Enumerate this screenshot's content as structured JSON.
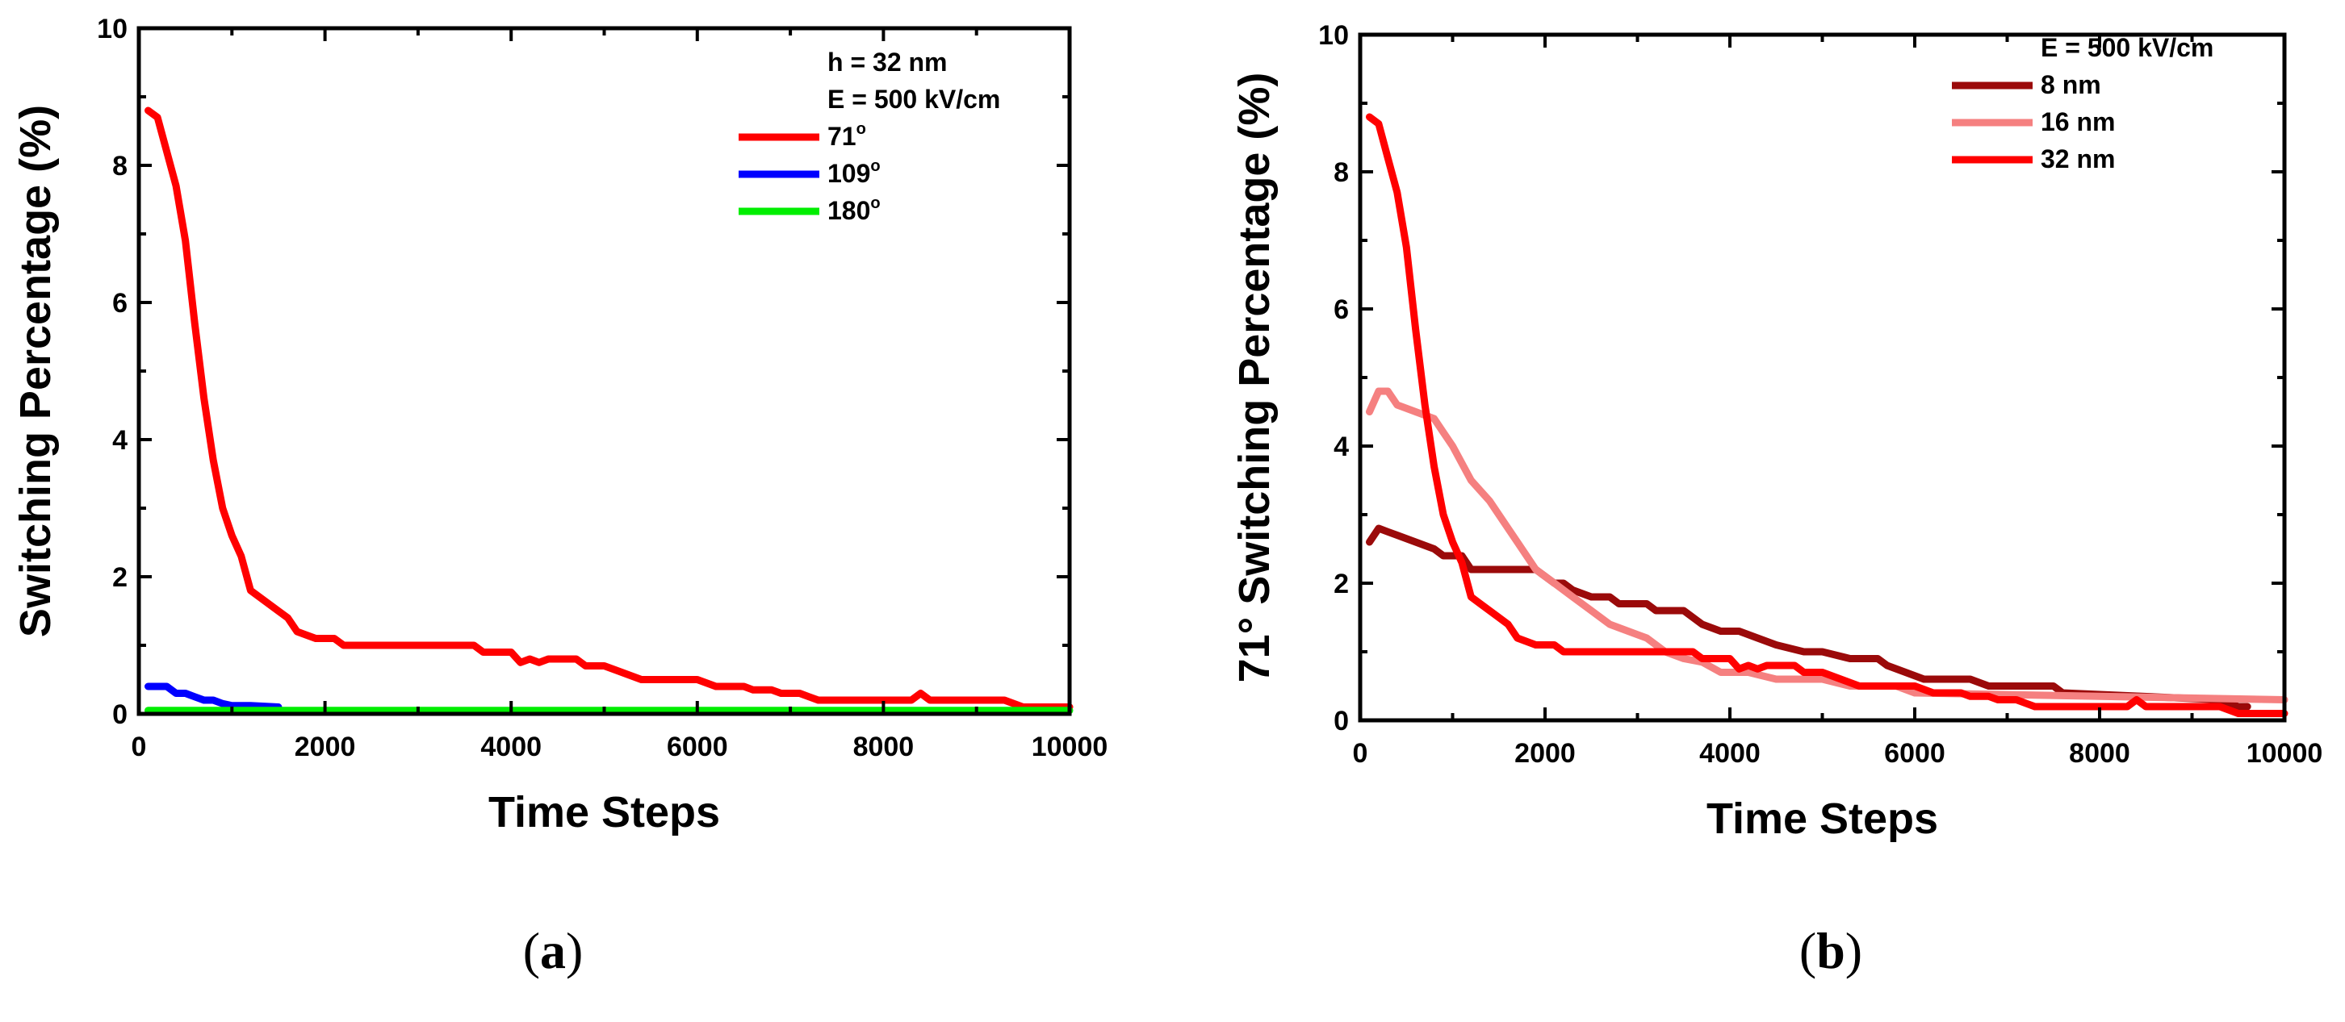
{
  "chart_data": [
    {
      "type": "line",
      "panel_label": "(a)",
      "panel_letter": "a",
      "title": "",
      "xlabel": "Time Steps",
      "ylabel": "Switching Percentage (%)",
      "xlim": [
        0,
        10000
      ],
      "ylim": [
        0,
        10
      ],
      "xticks": [
        0,
        2000,
        4000,
        6000,
        8000,
        10000
      ],
      "yticks": [
        0,
        2,
        4,
        6,
        8,
        10
      ],
      "legend_position": "top-right",
      "legend_header": [
        "h = 32 nm",
        "E = 500 kV/cm"
      ],
      "series": [
        {
          "name": "71°",
          "label_main": "71",
          "label_sup": "o",
          "color": "#ff0000",
          "points": [
            [
              100,
              8.8
            ],
            [
              200,
              8.7
            ],
            [
              300,
              8.2
            ],
            [
              400,
              7.7
            ],
            [
              500,
              6.9
            ],
            [
              600,
              5.7
            ],
            [
              700,
              4.6
            ],
            [
              800,
              3.7
            ],
            [
              900,
              3.0
            ],
            [
              1000,
              2.6
            ],
            [
              1100,
              2.3
            ],
            [
              1200,
              1.8
            ],
            [
              1300,
              1.7
            ],
            [
              1400,
              1.6
            ],
            [
              1500,
              1.5
            ],
            [
              1600,
              1.4
            ],
            [
              1700,
              1.2
            ],
            [
              1900,
              1.1
            ],
            [
              2100,
              1.1
            ],
            [
              2200,
              1.0
            ],
            [
              3600,
              1.0
            ],
            [
              3700,
              0.9
            ],
            [
              4000,
              0.9
            ],
            [
              4100,
              0.75
            ],
            [
              4200,
              0.8
            ],
            [
              4300,
              0.75
            ],
            [
              4400,
              0.8
            ],
            [
              4700,
              0.8
            ],
            [
              4800,
              0.7
            ],
            [
              5000,
              0.7
            ],
            [
              5200,
              0.6
            ],
            [
              5400,
              0.5
            ],
            [
              6000,
              0.5
            ],
            [
              6200,
              0.4
            ],
            [
              6500,
              0.4
            ],
            [
              6600,
              0.35
            ],
            [
              6800,
              0.35
            ],
            [
              6900,
              0.3
            ],
            [
              7100,
              0.3
            ],
            [
              7200,
              0.25
            ],
            [
              7300,
              0.2
            ],
            [
              8300,
              0.2
            ],
            [
              8400,
              0.3
            ],
            [
              8500,
              0.2
            ],
            [
              9300,
              0.2
            ],
            [
              9500,
              0.1
            ],
            [
              10000,
              0.1
            ]
          ]
        },
        {
          "name": "109°",
          "label_main": "109",
          "label_sup": "o",
          "color": "#0000ff",
          "points": [
            [
              100,
              0.4
            ],
            [
              300,
              0.4
            ],
            [
              400,
              0.3
            ],
            [
              500,
              0.3
            ],
            [
              600,
              0.25
            ],
            [
              700,
              0.2
            ],
            [
              800,
              0.2
            ],
            [
              900,
              0.15
            ],
            [
              1000,
              0.12
            ],
            [
              1200,
              0.12
            ],
            [
              1500,
              0.1
            ]
          ]
        },
        {
          "name": "180°",
          "label_main": "180",
          "label_sup": "o",
          "color": "#00ee00",
          "points": [
            [
              100,
              0.05
            ],
            [
              10000,
              0.05
            ]
          ]
        }
      ]
    },
    {
      "type": "line",
      "panel_label": "(b)",
      "panel_letter": "b",
      "title": "",
      "xlabel": "Time Steps",
      "ylabel": "71° Switching Percentage (%)",
      "xlim": [
        0,
        10000
      ],
      "ylim": [
        0,
        10
      ],
      "xticks": [
        0,
        2000,
        4000,
        6000,
        8000,
        10000
      ],
      "yticks": [
        0,
        2,
        4,
        6,
        8,
        10
      ],
      "legend_position": "top-right",
      "legend_header": [
        "E = 500 kV/cm"
      ],
      "series": [
        {
          "name": "8 nm",
          "label_main": "8 nm",
          "label_sup": "",
          "color": "#9b0a0a",
          "points": [
            [
              100,
              2.6
            ],
            [
              200,
              2.8
            ],
            [
              300,
              2.75
            ],
            [
              400,
              2.7
            ],
            [
              600,
              2.6
            ],
            [
              800,
              2.5
            ],
            [
              900,
              2.4
            ],
            [
              1100,
              2.4
            ],
            [
              1200,
              2.2
            ],
            [
              1900,
              2.2
            ],
            [
              2000,
              2.1
            ],
            [
              2100,
              2.0
            ],
            [
              2200,
              2.0
            ],
            [
              2300,
              1.9
            ],
            [
              2500,
              1.8
            ],
            [
              2700,
              1.8
            ],
            [
              2800,
              1.7
            ],
            [
              3100,
              1.7
            ],
            [
              3200,
              1.6
            ],
            [
              3500,
              1.6
            ],
            [
              3700,
              1.4
            ],
            [
              3900,
              1.3
            ],
            [
              4100,
              1.3
            ],
            [
              4300,
              1.2
            ],
            [
              4500,
              1.1
            ],
            [
              4800,
              1.0
            ],
            [
              5000,
              1.0
            ],
            [
              5300,
              0.9
            ],
            [
              5600,
              0.9
            ],
            [
              5700,
              0.8
            ],
            [
              5900,
              0.7
            ],
            [
              6100,
              0.6
            ],
            [
              6600,
              0.6
            ],
            [
              6800,
              0.5
            ],
            [
              7500,
              0.5
            ],
            [
              7600,
              0.4
            ],
            [
              9300,
              0.3
            ],
            [
              9500,
              0.2
            ],
            [
              9600,
              0.2
            ]
          ]
        },
        {
          "name": "16 nm",
          "label_main": "16 nm",
          "label_sup": "",
          "color": "#f58080",
          "points": [
            [
              100,
              4.5
            ],
            [
              200,
              4.8
            ],
            [
              300,
              4.8
            ],
            [
              400,
              4.6
            ],
            [
              600,
              4.5
            ],
            [
              800,
              4.4
            ],
            [
              900,
              4.2
            ],
            [
              1000,
              4.0
            ],
            [
              1200,
              3.5
            ],
            [
              1400,
              3.2
            ],
            [
              1600,
              2.8
            ],
            [
              1700,
              2.6
            ],
            [
              1900,
              2.2
            ],
            [
              2100,
              2.0
            ],
            [
              2300,
              1.8
            ],
            [
              2500,
              1.6
            ],
            [
              2700,
              1.4
            ],
            [
              2900,
              1.3
            ],
            [
              3100,
              1.2
            ],
            [
              3300,
              1.0
            ],
            [
              3500,
              0.9
            ],
            [
              3700,
              0.85
            ],
            [
              3900,
              0.7
            ],
            [
              4200,
              0.7
            ],
            [
              4500,
              0.6
            ],
            [
              5000,
              0.6
            ],
            [
              5300,
              0.5
            ],
            [
              5600,
              0.5
            ],
            [
              5800,
              0.5
            ],
            [
              6000,
              0.4
            ],
            [
              10000,
              0.3
            ]
          ]
        },
        {
          "name": "32 nm",
          "label_main": "32 nm",
          "label_sup": "",
          "color": "#ff0000",
          "points": [
            [
              100,
              8.8
            ],
            [
              200,
              8.7
            ],
            [
              300,
              8.2
            ],
            [
              400,
              7.7
            ],
            [
              500,
              6.9
            ],
            [
              600,
              5.7
            ],
            [
              700,
              4.6
            ],
            [
              800,
              3.7
            ],
            [
              900,
              3.0
            ],
            [
              1000,
              2.6
            ],
            [
              1100,
              2.3
            ],
            [
              1200,
              1.8
            ],
            [
              1300,
              1.7
            ],
            [
              1400,
              1.6
            ],
            [
              1500,
              1.5
            ],
            [
              1600,
              1.4
            ],
            [
              1700,
              1.2
            ],
            [
              1900,
              1.1
            ],
            [
              2100,
              1.1
            ],
            [
              2200,
              1.0
            ],
            [
              3600,
              1.0
            ],
            [
              3700,
              0.9
            ],
            [
              4000,
              0.9
            ],
            [
              4100,
              0.75
            ],
            [
              4200,
              0.8
            ],
            [
              4300,
              0.75
            ],
            [
              4400,
              0.8
            ],
            [
              4700,
              0.8
            ],
            [
              4800,
              0.7
            ],
            [
              5000,
              0.7
            ],
            [
              5200,
              0.6
            ],
            [
              5400,
              0.5
            ],
            [
              6000,
              0.5
            ],
            [
              6200,
              0.4
            ],
            [
              6500,
              0.4
            ],
            [
              6600,
              0.35
            ],
            [
              6800,
              0.35
            ],
            [
              6900,
              0.3
            ],
            [
              7100,
              0.3
            ],
            [
              7200,
              0.25
            ],
            [
              7300,
              0.2
            ],
            [
              8300,
              0.2
            ],
            [
              8400,
              0.3
            ],
            [
              8500,
              0.2
            ],
            [
              9300,
              0.2
            ],
            [
              9500,
              0.1
            ],
            [
              10000,
              0.1
            ]
          ]
        }
      ]
    }
  ]
}
